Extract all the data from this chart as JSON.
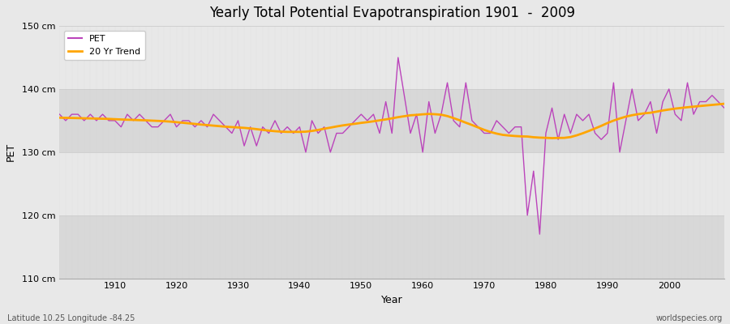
{
  "title": "Yearly Total Potential Evapotranspiration 1901  -  2009",
  "xlabel": "Year",
  "ylabel": "PET",
  "bottom_left_label": "Latitude 10.25 Longitude -84.25",
  "bottom_right_label": "worldspecies.org",
  "ylim": [
    110,
    150
  ],
  "ytick_labels": [
    "110 cm",
    "120 cm",
    "130 cm",
    "140 cm",
    "150 cm"
  ],
  "ytick_values": [
    110,
    120,
    130,
    140,
    150
  ],
  "fig_bg_color": "#e8e8e8",
  "plot_bg_color": "#dcdcdc",
  "band_color_light": "#e8e8e8",
  "band_color_dark": "#d8d8d8",
  "pet_color": "#bb44bb",
  "trend_color": "#FFA500",
  "pet_linewidth": 1.0,
  "trend_linewidth": 2.0,
  "years": [
    1901,
    1902,
    1903,
    1904,
    1905,
    1906,
    1907,
    1908,
    1909,
    1910,
    1911,
    1912,
    1913,
    1914,
    1915,
    1916,
    1917,
    1918,
    1919,
    1920,
    1921,
    1922,
    1923,
    1924,
    1925,
    1926,
    1927,
    1928,
    1929,
    1930,
    1931,
    1932,
    1933,
    1934,
    1935,
    1936,
    1937,
    1938,
    1939,
    1940,
    1941,
    1942,
    1943,
    1944,
    1945,
    1946,
    1947,
    1948,
    1949,
    1950,
    1951,
    1952,
    1953,
    1954,
    1955,
    1956,
    1957,
    1958,
    1959,
    1960,
    1961,
    1962,
    1963,
    1964,
    1965,
    1966,
    1967,
    1968,
    1969,
    1970,
    1971,
    1972,
    1973,
    1974,
    1975,
    1976,
    1977,
    1978,
    1979,
    1980,
    1981,
    1982,
    1983,
    1984,
    1985,
    1986,
    1987,
    1988,
    1989,
    1990,
    1991,
    1992,
    1993,
    1994,
    1995,
    1996,
    1997,
    1998,
    1999,
    2000,
    2001,
    2002,
    2003,
    2004,
    2005,
    2006,
    2007,
    2008,
    2009
  ],
  "pet_values": [
    136,
    135,
    136,
    136,
    135,
    136,
    135,
    136,
    135,
    135,
    134,
    136,
    135,
    136,
    135,
    134,
    134,
    135,
    136,
    134,
    135,
    135,
    134,
    135,
    134,
    136,
    135,
    134,
    133,
    135,
    131,
    134,
    131,
    134,
    133,
    135,
    133,
    134,
    133,
    134,
    130,
    135,
    133,
    134,
    130,
    133,
    133,
    134,
    135,
    136,
    135,
    136,
    133,
    138,
    133,
    145,
    139,
    133,
    136,
    130,
    138,
    133,
    136,
    141,
    135,
    134,
    141,
    135,
    134,
    133,
    133,
    135,
    134,
    133,
    134,
    134,
    120,
    127,
    117,
    133,
    137,
    132,
    136,
    133,
    136,
    135,
    136,
    133,
    132,
    133,
    141,
    130,
    135,
    140,
    135,
    136,
    138,
    133,
    138,
    140,
    136,
    135,
    141,
    136,
    138,
    138,
    139,
    138,
    137
  ],
  "grid_dot_color": "#cccccc",
  "spine_color": "#aaaaaa"
}
